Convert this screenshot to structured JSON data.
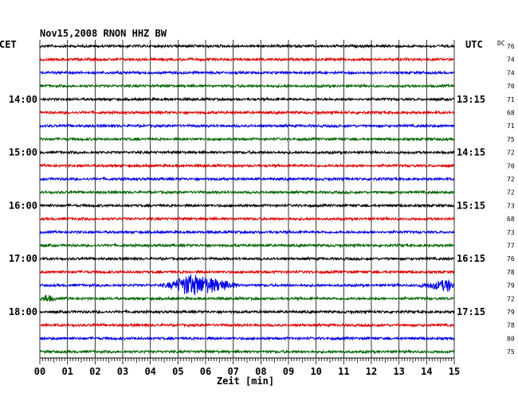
{
  "chart_data": {
    "type": "line",
    "title": "Nov15,2008   RNON HHZ BW",
    "left_label": "CET",
    "right_label": "UTC",
    "dc_label": "DC",
    "xlabel": "Zeit [min]",
    "x_ticks": [
      "00",
      "01",
      "02",
      "03",
      "04",
      "05",
      "06",
      "07",
      "08",
      "09",
      "10",
      "11",
      "12",
      "13",
      "14",
      "15"
    ],
    "xlim": [
      0,
      15
    ],
    "trace_colors": [
      "#000000",
      "#e00000",
      "#0000e8",
      "#006400"
    ],
    "hour_labels_left": [
      {
        "trace": 4,
        "label": "14:00"
      },
      {
        "trace": 8,
        "label": "15:00"
      },
      {
        "trace": 12,
        "label": "16:00"
      },
      {
        "trace": 16,
        "label": "17:00"
      },
      {
        "trace": 20,
        "label": "18:00"
      }
    ],
    "hour_labels_right": [
      {
        "trace": 4,
        "label": "13:15"
      },
      {
        "trace": 8,
        "label": "14:15"
      },
      {
        "trace": 12,
        "label": "15:15"
      },
      {
        "trace": 16,
        "label": "16:15"
      },
      {
        "trace": 20,
        "label": "17:15"
      }
    ],
    "dc_values": [
      "76",
      "74",
      "74",
      "70",
      "71",
      "68",
      "71",
      "75",
      "72",
      "70",
      "72",
      "72",
      "73",
      "68",
      "73",
      "77",
      "76",
      "78",
      "79",
      "72",
      "79",
      "78",
      "80",
      "75"
    ],
    "trace_count": 24,
    "events": [
      {
        "trace": 18,
        "start_min": 4.3,
        "peak_min": 5.4,
        "end_min": 7.2,
        "amplitude": "large"
      },
      {
        "trace": 18,
        "start_min": 13.4,
        "peak_min": 14.8,
        "end_min": 15.0,
        "amplitude": "medium"
      },
      {
        "trace": 19,
        "start_min": 0.0,
        "peak_min": 0.2,
        "end_min": 0.6,
        "amplitude": "small"
      }
    ]
  }
}
